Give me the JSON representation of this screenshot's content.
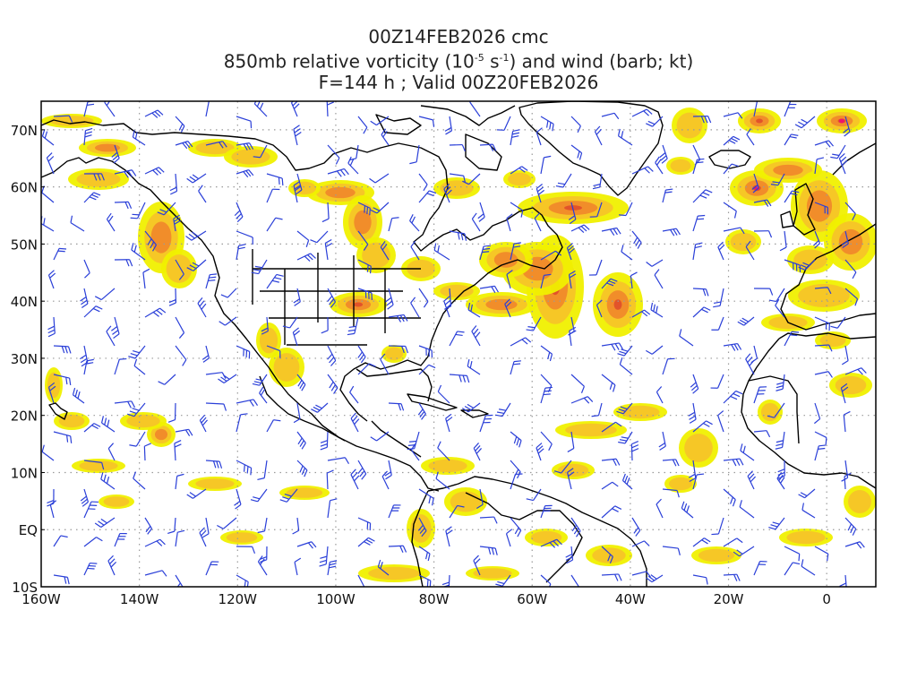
{
  "header": {
    "line1": "00Z14FEB2026 cmc",
    "line2_pre": "850mb relative vorticity (10",
    "line2_exp1": "-5",
    "line2_mid": " s",
    "line2_exp2": "-1",
    "line2_post": ") and wind (barb; kt)",
    "line3": "F=144 h ; Valid 00Z20FEB2026"
  },
  "axes": {
    "lon_labels": [
      "160W",
      "140W",
      "120W",
      "100W",
      "80W",
      "60W",
      "40W",
      "20W",
      "0"
    ],
    "lat_labels": [
      "70N",
      "60N",
      "50N",
      "40N",
      "30N",
      "20N",
      "10N",
      "EQ",
      "10S"
    ],
    "lon_range": [
      -160,
      10
    ],
    "lat_range": [
      -10,
      75
    ]
  },
  "style": {
    "barb_color": "#2a3fd8",
    "coast_color": "#000000",
    "grid_color": "#9a9a9a",
    "shade_colors": [
      "#f0f000",
      "#f5c428",
      "#f08a2a",
      "#e0502a",
      "#ee1070"
    ]
  },
  "map": {
    "projection": "cylindrical equidistant",
    "gridlines": "dotted"
  }
}
